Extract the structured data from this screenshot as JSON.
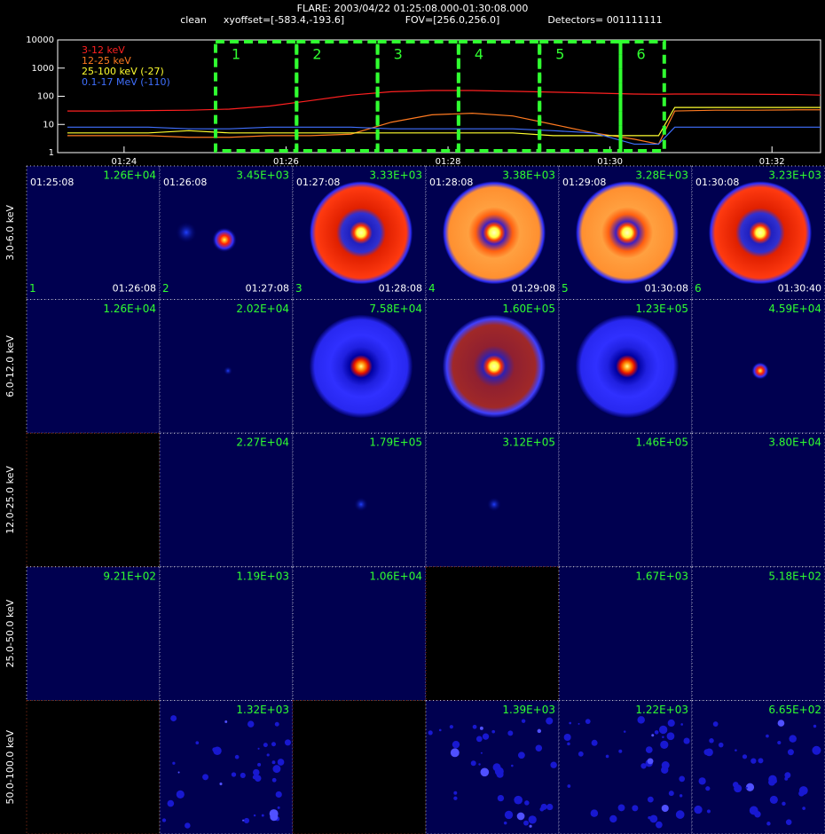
{
  "header": {
    "title": "FLARE: 2003/04/22 01:25:08.000-01:30:08.000",
    "method": "clean",
    "xyoffset": "xyoffset=[-583.4,-193.6]",
    "fov": "FOV=[256.0,256.0]",
    "detectors": "Detectors= 001111111"
  },
  "chart_data": {
    "type": "line",
    "log_y": true,
    "x": [
      23.3,
      23.8,
      24.3,
      24.8,
      25.3,
      25.8,
      26.3,
      26.8,
      27.3,
      27.8,
      28.3,
      28.8,
      29.3,
      29.8,
      30.3,
      30.6,
      30.8,
      31.3,
      31.8,
      32.3,
      32.6
    ],
    "series": [
      {
        "name": "3-12 keV",
        "color": "#ff2020",
        "values": [
          30,
          30,
          31,
          32,
          35,
          45,
          70,
          110,
          145,
          160,
          160,
          150,
          140,
          130,
          120,
          118,
          120,
          120,
          118,
          115,
          110
        ]
      },
      {
        "name": "12-25 keV",
        "color": "#ff7a20",
        "values": [
          4,
          4,
          4,
          3.5,
          3.5,
          4,
          4,
          4.5,
          12,
          22,
          25,
          20,
          10,
          5,
          3,
          2,
          30,
          32,
          32,
          33,
          33
        ]
      },
      {
        "name": "25-100 keV (-27)",
        "color": "#ffff30",
        "values": [
          5,
          5,
          5,
          6,
          5,
          5,
          5,
          5,
          5,
          5,
          5,
          5,
          4,
          4,
          4,
          4,
          40,
          40,
          40,
          40,
          40
        ]
      },
      {
        "name": "0.1-17 MeV (-110)",
        "color": "#4070ff",
        "values": [
          8,
          8,
          8,
          7,
          7,
          8,
          8,
          8,
          7,
          7,
          7,
          7,
          6,
          5,
          2,
          2,
          8,
          8,
          8,
          8,
          8
        ]
      }
    ],
    "xlim": [
      23.18,
      32.6
    ],
    "ylim": [
      1,
      10000
    ],
    "xticks": [
      {
        "value": 24,
        "label": "01:24"
      },
      {
        "value": 26,
        "label": "01:26"
      },
      {
        "value": 28,
        "label": "01:28"
      },
      {
        "value": 30,
        "label": "01:30"
      },
      {
        "value": 32,
        "label": "01:32"
      }
    ],
    "yticks": [
      1,
      10,
      100,
      1000,
      10000
    ],
    "intervals": [
      {
        "label": "1",
        "start": 25.13,
        "end": 26.13
      },
      {
        "label": "2",
        "start": 26.13,
        "end": 27.13
      },
      {
        "label": "3",
        "start": 27.13,
        "end": 28.13
      },
      {
        "label": "4",
        "start": 28.13,
        "end": 29.13
      },
      {
        "label": "5",
        "start": 29.13,
        "end": 30.13
      },
      {
        "label": "6",
        "start": 30.13,
        "end": 30.67
      }
    ]
  },
  "panels": {
    "energy_bands": [
      "3.0-6.0 keV",
      "6.0-12.0 keV",
      "12.0-25.0 keV",
      "25.0-50.0 keV",
      "50.0-100.0 keV"
    ],
    "start_times": [
      "01:25:08",
      "01:26:08",
      "01:27:08",
      "01:28:08",
      "01:29:08",
      "01:30:08"
    ],
    "end_times": [
      "01:26:08",
      "01:27:08",
      "01:28:08",
      "01:29:08",
      "01:30:08",
      "01:30:40"
    ],
    "indices": [
      "1",
      "2",
      "3",
      "4",
      "5",
      "6"
    ],
    "peaks": [
      [
        "1.26E+04",
        "3.45E+03",
        "3.33E+03",
        "3.38E+03",
        "3.28E+03",
        "3.23E+03"
      ],
      [
        "1.26E+04",
        "2.02E+04",
        "7.58E+04",
        "1.60E+05",
        "1.23E+05",
        "4.59E+04"
      ],
      [
        null,
        "2.27E+04",
        "1.79E+05",
        "3.12E+05",
        "1.46E+05",
        "3.80E+04"
      ],
      [
        "9.21E+02",
        "1.19E+03",
        "1.06E+04",
        null,
        "1.67E+03",
        "5.18E+02"
      ],
      [
        null,
        "1.32E+03",
        null,
        "1.39E+03",
        "1.22E+03",
        "6.65E+02"
      ]
    ]
  }
}
